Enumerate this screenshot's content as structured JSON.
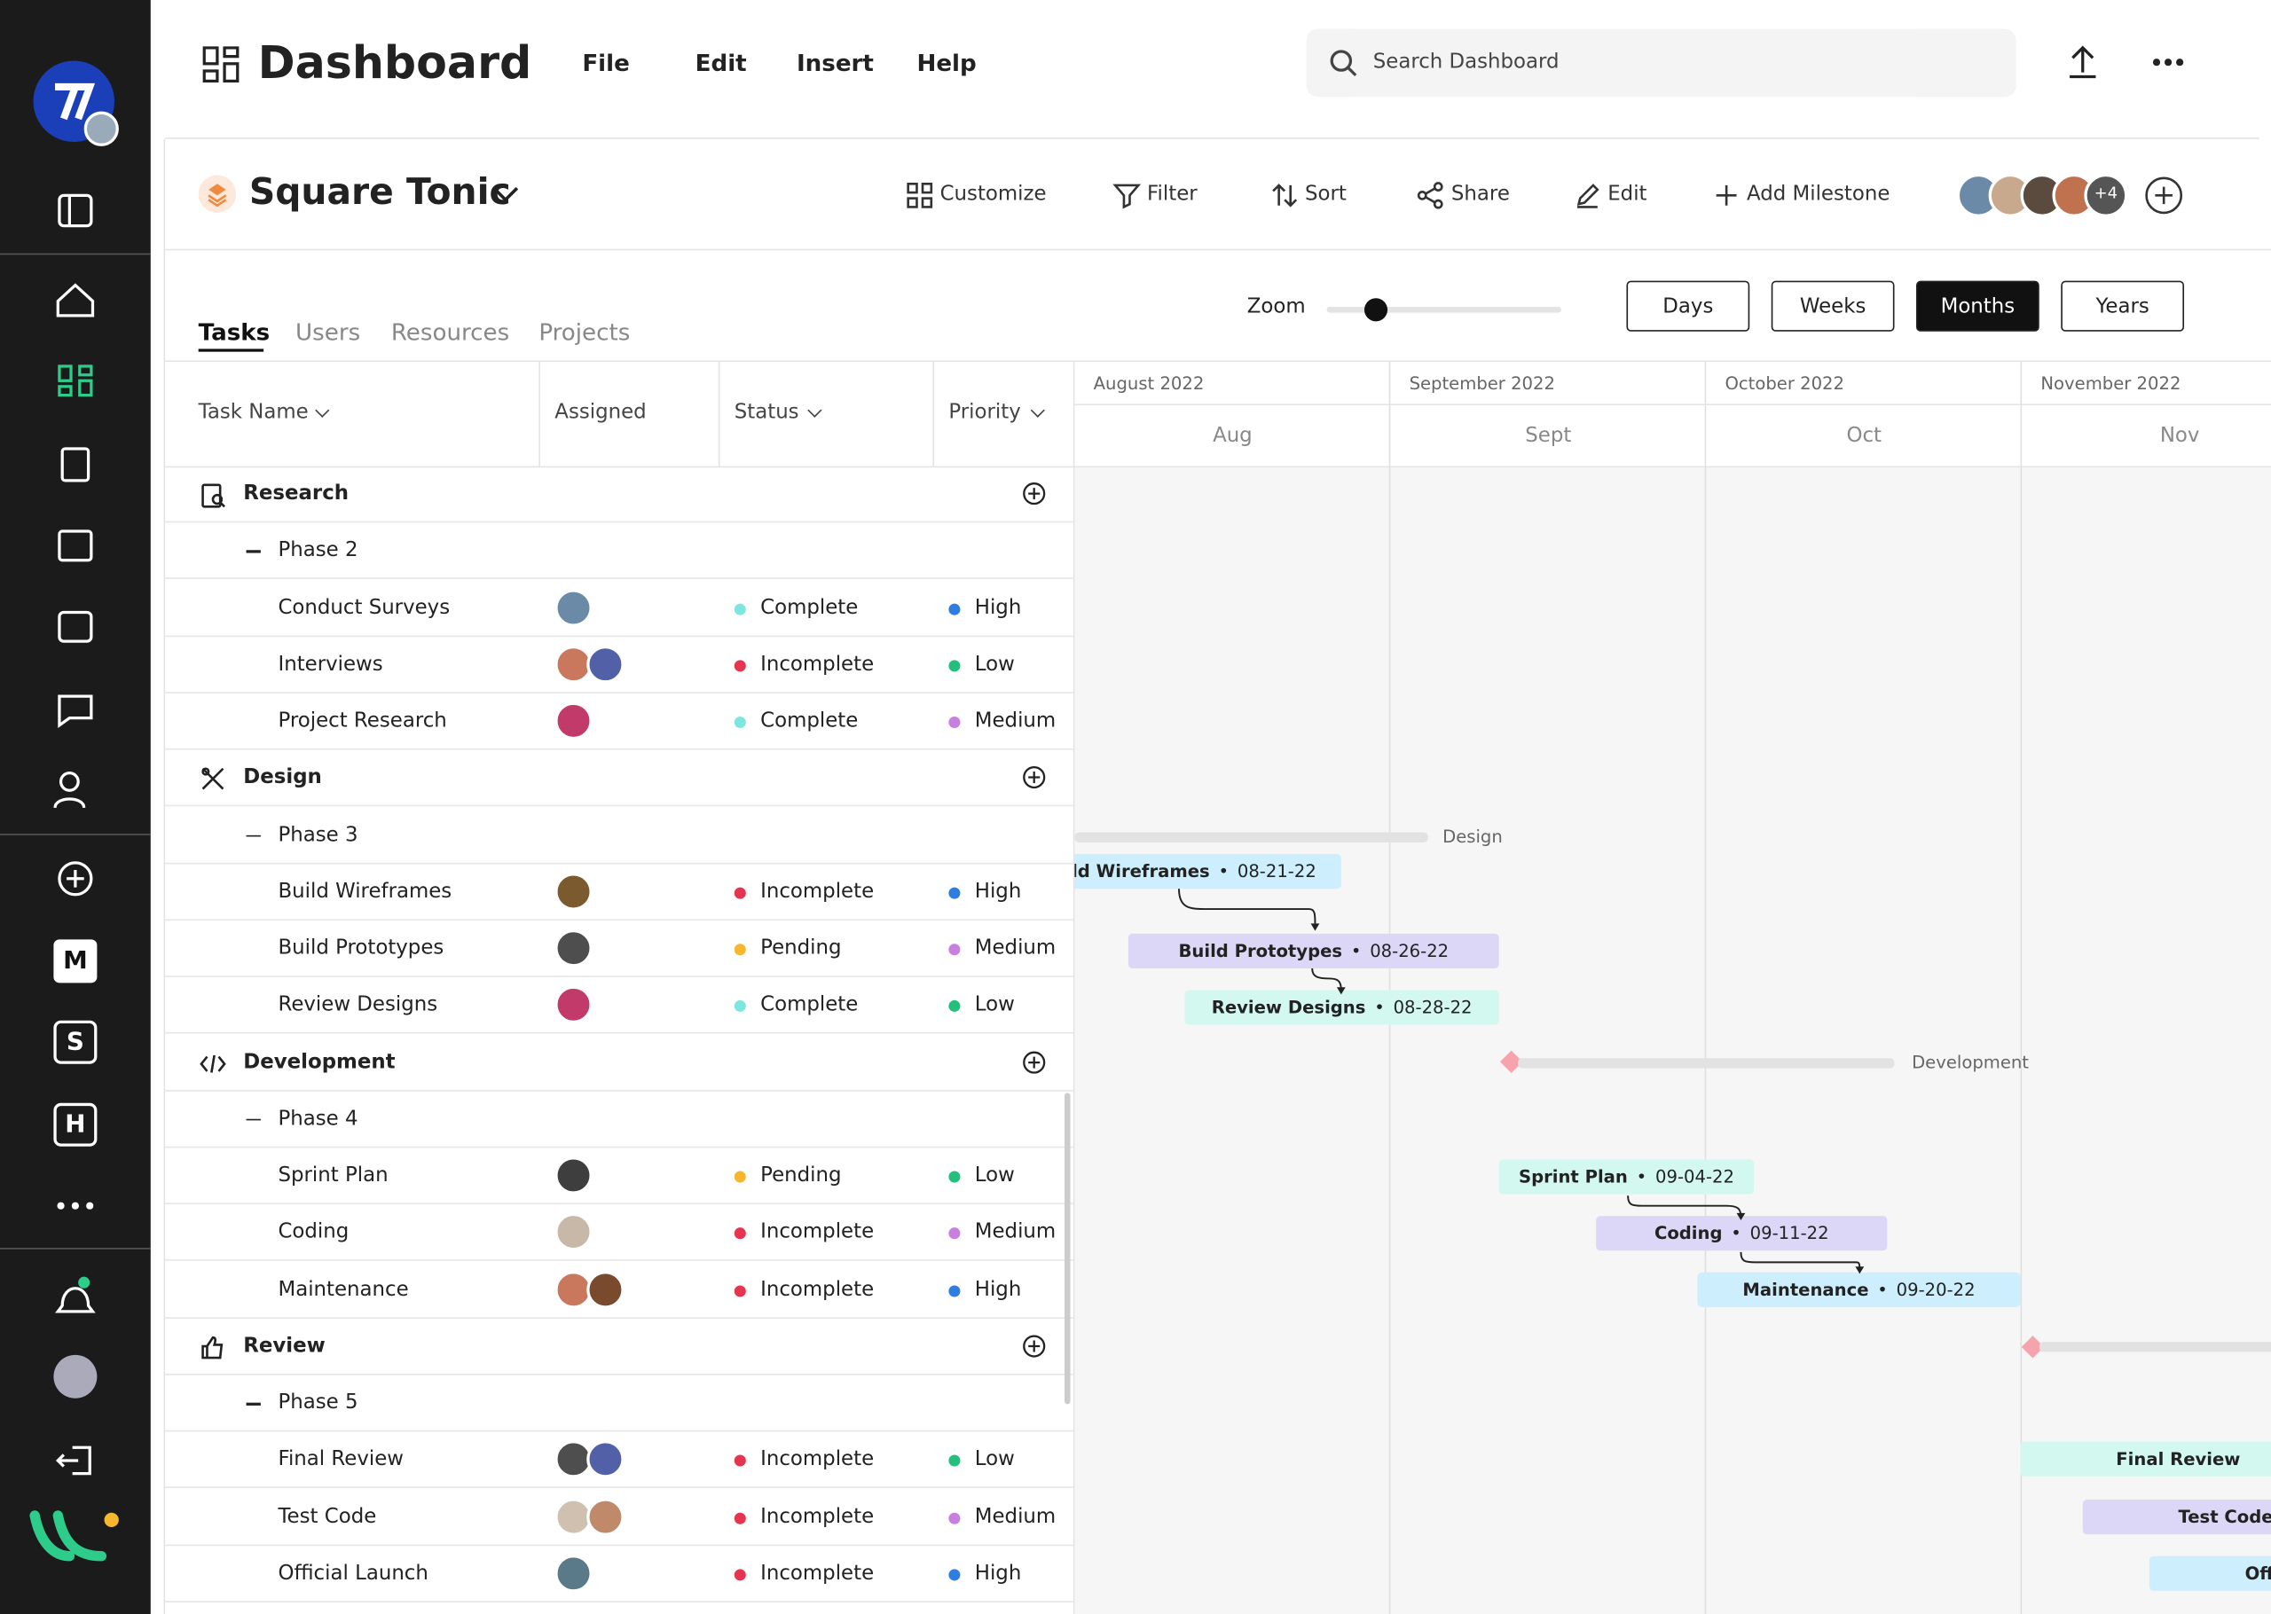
{
  "header": {
    "title": "Dashboard",
    "menu": [
      "File",
      "Edit",
      "Insert",
      "Help"
    ],
    "search_placeholder": "Search Dashboard"
  },
  "sidebar": {
    "apps": [
      "M",
      "S",
      "H"
    ]
  },
  "project": {
    "name": "Square Tonic",
    "actions": [
      "Customize",
      "Filter",
      "Sort",
      "Share",
      "Edit",
      "Add Milestone"
    ],
    "more_members": "+4"
  },
  "tabs": [
    "Tasks",
    "Users",
    "Resources",
    "Projects"
  ],
  "zoom": {
    "label": "Zoom"
  },
  "views": [
    "Days",
    "Weeks",
    "Months",
    "Years"
  ],
  "columns": [
    "Task Name",
    "Assigned",
    "Status",
    "Priority"
  ],
  "groups": [
    {
      "name": "Research",
      "phase": "Phase 2",
      "tasks": [
        {
          "name": "Conduct Surveys",
          "status": "Complete",
          "status_color": "#7fe6df",
          "priority": "High",
          "priority_color": "#2f7de1"
        },
        {
          "name": "Interviews",
          "status": "Incomplete",
          "status_color": "#e8344e",
          "priority": "Low",
          "priority_color": "#22c07a"
        },
        {
          "name": "Project Research",
          "status": "Complete",
          "status_color": "#7fe6df",
          "priority": "Medium",
          "priority_color": "#c77fe0"
        }
      ]
    },
    {
      "name": "Design",
      "phase": "Phase 3",
      "tasks": [
        {
          "name": "Build Wireframes",
          "status": "Incomplete",
          "status_color": "#e8344e",
          "priority": "High",
          "priority_color": "#2f7de1"
        },
        {
          "name": "Build Prototypes",
          "status": "Pending",
          "status_color": "#f5b72e",
          "priority": "Medium",
          "priority_color": "#c77fe0"
        },
        {
          "name": "Review Designs",
          "status": "Complete",
          "status_color": "#7fe6df",
          "priority": "Low",
          "priority_color": "#22c07a"
        }
      ]
    },
    {
      "name": "Development",
      "phase": "Phase 4",
      "tasks": [
        {
          "name": "Sprint Plan",
          "status": "Pending",
          "status_color": "#f5b72e",
          "priority": "Low",
          "priority_color": "#22c07a"
        },
        {
          "name": "Coding",
          "status": "Incomplete",
          "status_color": "#e8344e",
          "priority": "Medium",
          "priority_color": "#c77fe0"
        },
        {
          "name": "Maintenance",
          "status": "Incomplete",
          "status_color": "#e8344e",
          "priority": "High",
          "priority_color": "#2f7de1"
        }
      ]
    },
    {
      "name": "Review",
      "phase": "Phase 5",
      "tasks": [
        {
          "name": "Final Review",
          "status": "Incomplete",
          "status_color": "#e8344e",
          "priority": "Low",
          "priority_color": "#22c07a"
        },
        {
          "name": "Test Code",
          "status": "Incomplete",
          "status_color": "#e8344e",
          "priority": "Medium",
          "priority_color": "#c77fe0"
        },
        {
          "name": "Official Launch",
          "status": "Incomplete",
          "status_color": "#e8344e",
          "priority": "High",
          "priority_color": "#2f7de1"
        }
      ]
    }
  ],
  "timeline": {
    "months": [
      {
        "label": "August 2022",
        "short": "Aug"
      },
      {
        "label": "September 2022",
        "short": "Sept"
      },
      {
        "label": "October 2022",
        "short": "Oct"
      },
      {
        "label": "November 2022",
        "short": "Nov"
      }
    ],
    "summaries": [
      "Design",
      "Development"
    ],
    "bars": [
      {
        "name": "Build Wireframes",
        "date": "08-21-22"
      },
      {
        "name": "Build Prototypes",
        "date": "08-26-22"
      },
      {
        "name": "Review Designs",
        "date": "08-28-22"
      },
      {
        "name": "Sprint Plan",
        "date": "09-04-22"
      },
      {
        "name": "Coding",
        "date": "09-11-22"
      },
      {
        "name": "Maintenance",
        "date": "09-20-22"
      },
      {
        "name": "Final Review"
      },
      {
        "name": "Test Code"
      },
      {
        "name": "Official Launch"
      }
    ]
  }
}
